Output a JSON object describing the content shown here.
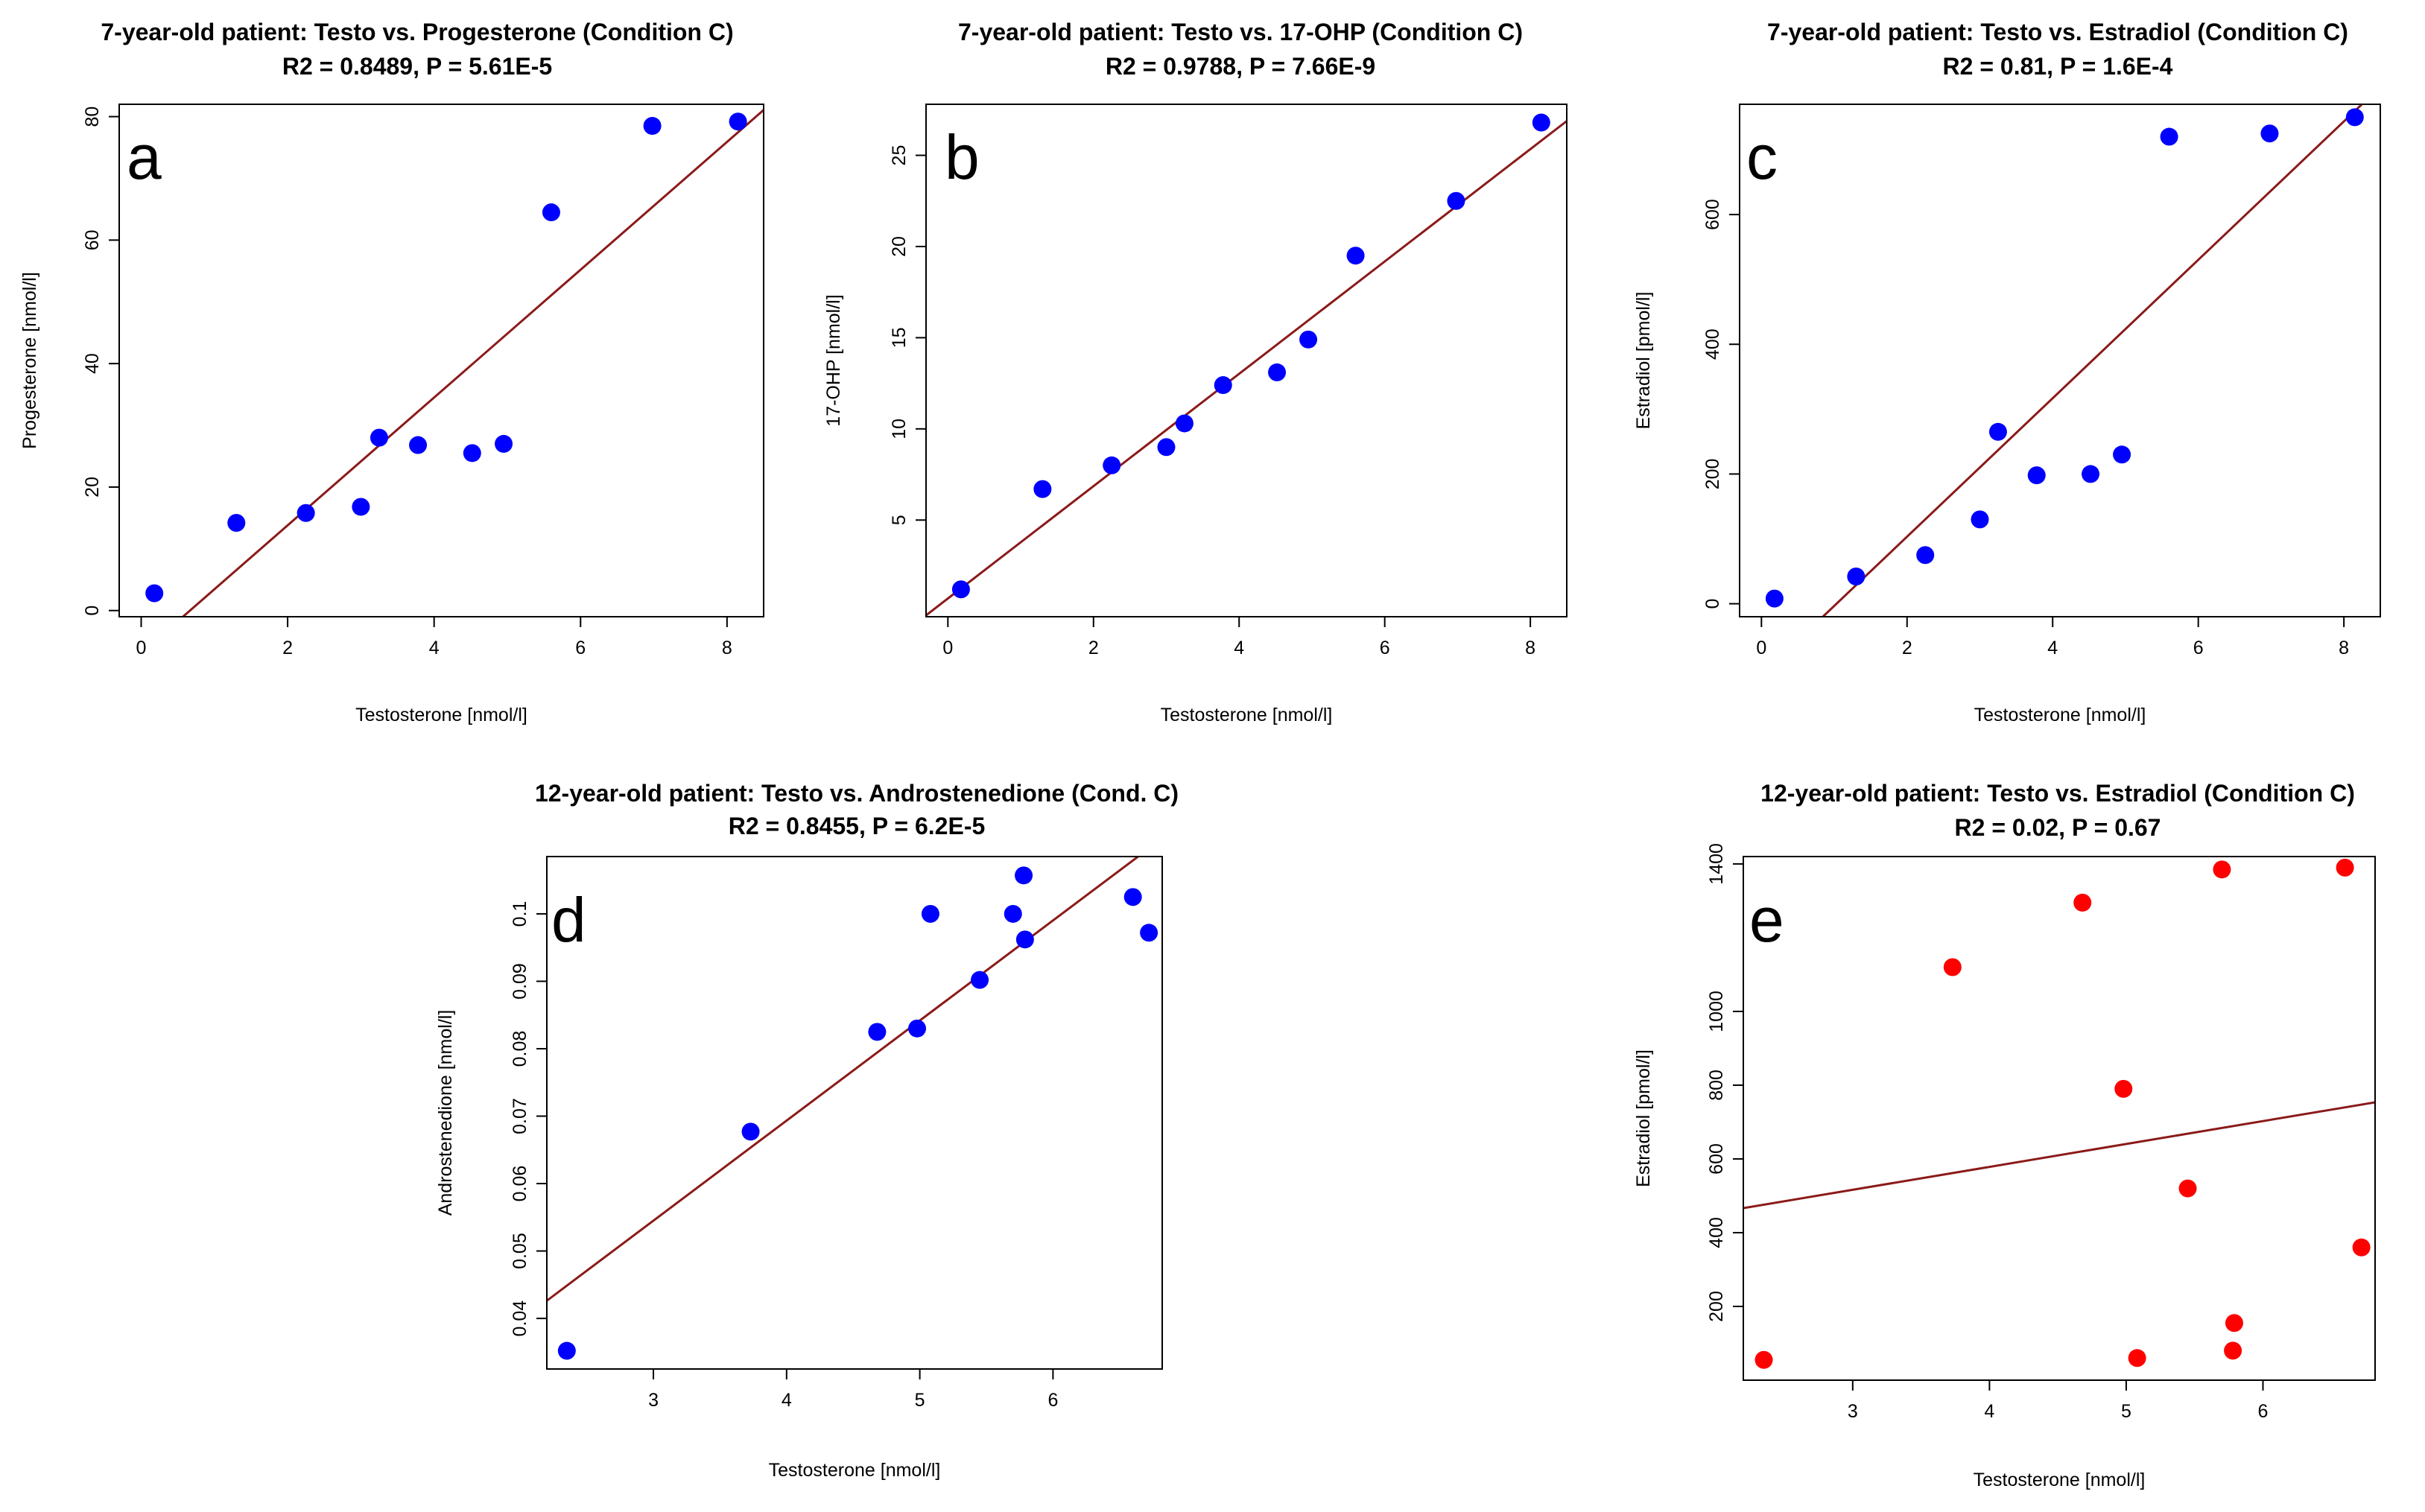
{
  "chart_data": [
    {
      "type": "scatter",
      "panel_label": "a",
      "title": "7-year-old patient: Testo vs. Progesterone (Condition C)",
      "subtitle": "R2 = 0.8489, P = 5.61E-5",
      "xlabel": "Testosterone [nmol/l]",
      "ylabel": "Progesterone [nmol/l]",
      "xlim": [
        -0.3,
        8.5
      ],
      "ylim": [
        -1,
        82
      ],
      "xticks": [
        0,
        2,
        4,
        6,
        8
      ],
      "yticks": [
        0,
        20,
        40,
        60,
        80
      ],
      "point_color": "#0000ff",
      "line_color": "#8b1a1a",
      "x": [
        0.18,
        1.3,
        2.25,
        3.0,
        3.25,
        3.78,
        4.52,
        4.95,
        5.6,
        6.98,
        8.15
      ],
      "y": [
        2.8,
        14.2,
        15.8,
        16.8,
        28.0,
        26.8,
        25.5,
        27.0,
        64.5,
        78.5,
        79.2
      ],
      "fit": {
        "slope": 10.35,
        "intercept": -6.9
      }
    },
    {
      "type": "scatter",
      "panel_label": "b",
      "title": "7-year-old patient: Testo vs. 17-OHP (Condition C)",
      "subtitle": "R2 = 0.9788, P = 7.66E-9",
      "xlabel": "Testosterone [nmol/l]",
      "ylabel": "17-OHP [nmol/l]",
      "xlim": [
        -0.3,
        8.5
      ],
      "ylim": [
        -0.3,
        27.8
      ],
      "xticks": [
        0,
        2,
        4,
        6,
        8
      ],
      "yticks": [
        5,
        10,
        15,
        20,
        25
      ],
      "point_color": "#0000ff",
      "line_color": "#8b1a1a",
      "x": [
        0.18,
        1.3,
        2.25,
        3.0,
        3.25,
        3.78,
        4.52,
        4.95,
        5.6,
        6.98,
        8.15
      ],
      "y": [
        1.2,
        6.7,
        8.0,
        9.0,
        10.3,
        12.4,
        13.1,
        14.9,
        19.5,
        22.5,
        26.8
      ],
      "fit": {
        "slope": 3.08,
        "intercept": 0.7
      }
    },
    {
      "type": "scatter",
      "panel_label": "c",
      "title": "7-year-old patient: Testo vs. Estradiol (Condition C)",
      "subtitle": "R2 = 0.81, P = 1.6E-4",
      "xlabel": "Testosterone [nmol/l]",
      "ylabel": "Estradiol [pmol/l]",
      "xlim": [
        -0.3,
        8.5
      ],
      "ylim": [
        -20,
        770
      ],
      "xticks": [
        0,
        2,
        4,
        6,
        8
      ],
      "yticks": [
        0,
        200,
        400,
        600
      ],
      "point_color": "#0000ff",
      "line_color": "#8b1a1a",
      "x": [
        0.18,
        1.3,
        2.25,
        3.0,
        3.25,
        3.78,
        4.52,
        4.95,
        5.6,
        6.98,
        8.15
      ],
      "y": [
        8,
        42,
        75,
        130,
        265,
        198,
        200,
        230,
        720,
        725,
        750
      ],
      "fit": {
        "slope": 106.7,
        "intercept": -110
      }
    },
    {
      "type": "scatter",
      "panel_label": "d",
      "title": "12-year-old patient: Testo vs. Androstenedione (Cond. C)",
      "subtitle": "R2 = 0.8455, P = 6.2E-5",
      "xlabel": "Testosterone [nmol/l]",
      "ylabel": "Androstenedione [nmol/l]",
      "xlim": [
        2.2,
        6.82
      ],
      "ylim": [
        0.0325,
        0.1085
      ],
      "xticks": [
        3,
        4,
        5,
        6
      ],
      "yticks": [
        0.04,
        0.05,
        0.06,
        0.07,
        0.08,
        0.09,
        0.1
      ],
      "point_color": "#0000ff",
      "line_color": "#8b1a1a",
      "x": [
        2.35,
        3.73,
        4.68,
        4.98,
        5.08,
        5.45,
        5.7,
        5.78,
        5.79,
        6.6,
        6.72
      ],
      "y": [
        0.0352,
        0.0677,
        0.0825,
        0.083,
        0.1,
        0.0902,
        0.1,
        0.1057,
        0.0962,
        0.1025,
        0.0972
      ],
      "fit": {
        "slope": 0.01484,
        "intercept": 0.00998
      }
    },
    {
      "type": "scatter",
      "panel_label": "e",
      "title": "12-year-old patient: Testo vs. Estradiol (Condition C)",
      "subtitle": "R2 = 0.02, P = 0.67",
      "xlabel": "Testosterone [nmol/l]",
      "ylabel": "Estradiol [pmol/l]",
      "xlim": [
        2.2,
        6.82
      ],
      "ylim": [
        0,
        1420
      ],
      "xticks": [
        3,
        4,
        5,
        6
      ],
      "yticks": [
        200,
        400,
        600,
        800,
        1000,
        1400
      ],
      "point_color": "#ff0000",
      "line_color": "#8b1a1a",
      "x": [
        2.35,
        3.73,
        4.68,
        4.98,
        5.08,
        5.45,
        5.7,
        5.78,
        5.79,
        6.6,
        6.72
      ],
      "y": [
        55,
        1120,
        1295,
        790,
        60,
        520,
        1385,
        80,
        155,
        1390,
        360
      ],
      "fit": {
        "slope": 62.1,
        "intercept": 330
      }
    }
  ]
}
